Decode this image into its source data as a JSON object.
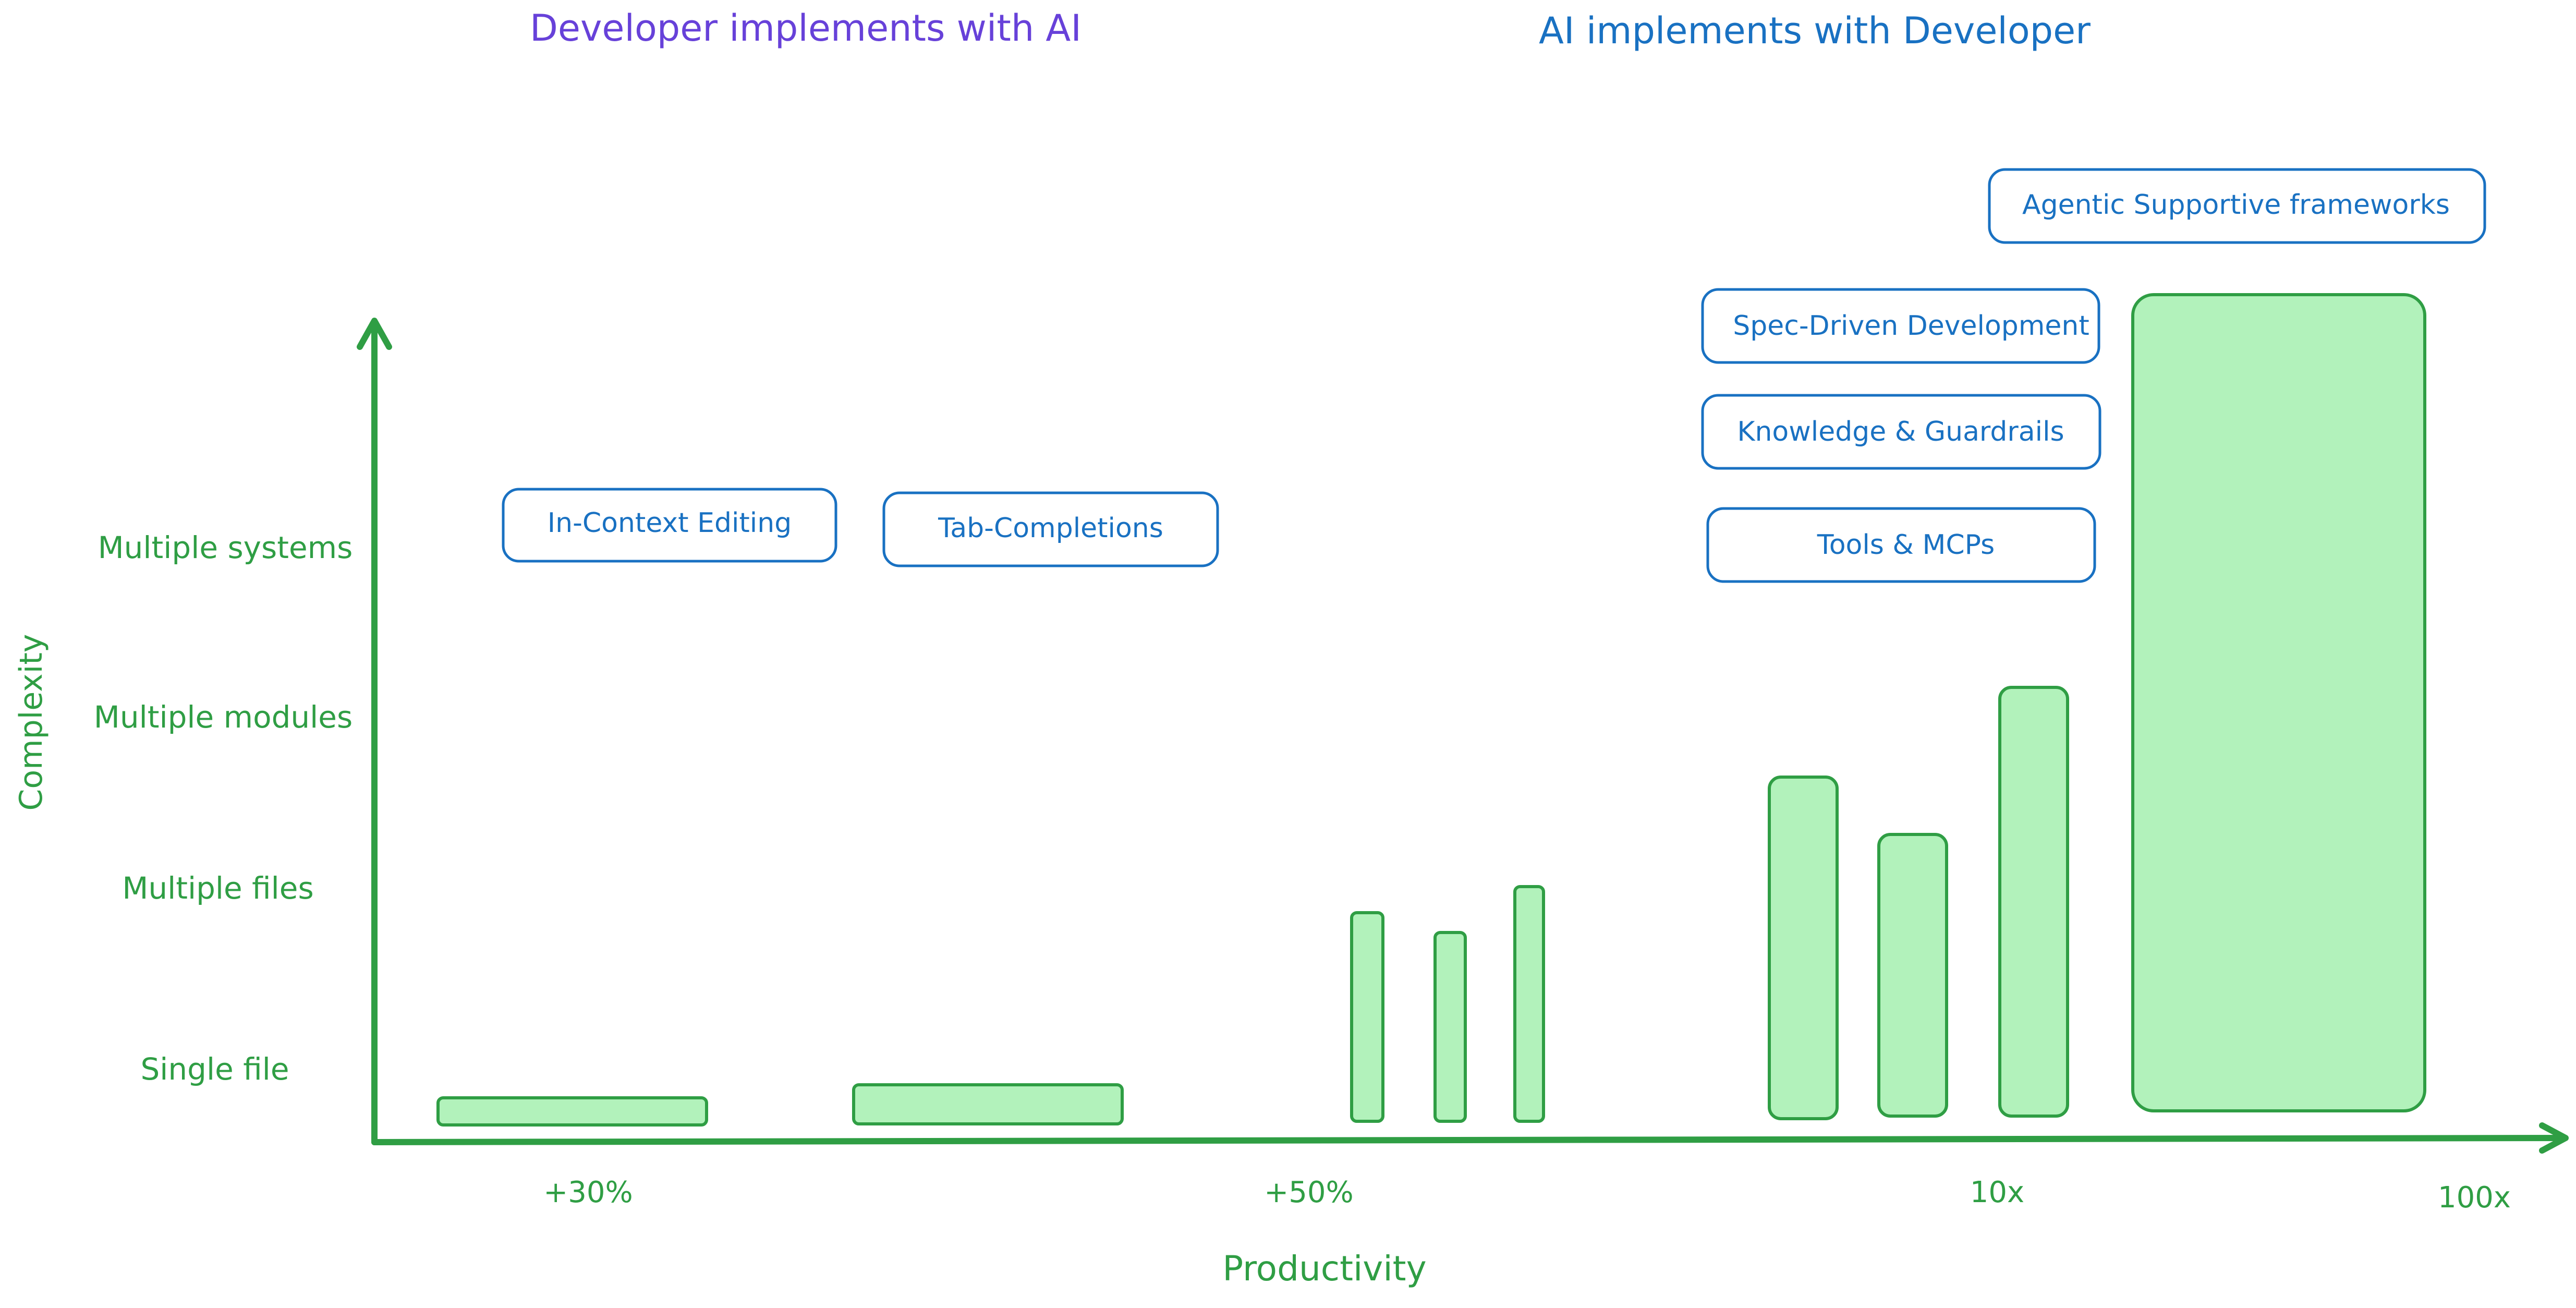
{
  "headings": {
    "left": "Developer implements with AI",
    "right": "AI implements with Developer"
  },
  "axes": {
    "x_label": "Productivity",
    "y_label": "Complexity",
    "x_ticks": [
      "+30%",
      "+50%",
      "10x",
      "100x"
    ],
    "y_ticks": [
      "Single file",
      "Multiple files",
      "Multiple modules",
      "Multiple systems"
    ]
  },
  "boxes": {
    "in_context_editing": "In-Context Editing",
    "tab_completions": "Tab-Completions",
    "spec_driven": "Spec-Driven Development",
    "knowledge_guardrails": "Knowledge & Guardrails",
    "tools_mcps": "Tools & MCPs",
    "agentic": "Agentic Supportive frameworks"
  },
  "colors": {
    "green": "#2f9e44",
    "bar_fill": "#b2f2bb",
    "blue": "#1971c2",
    "purple": "#6741d9"
  }
}
